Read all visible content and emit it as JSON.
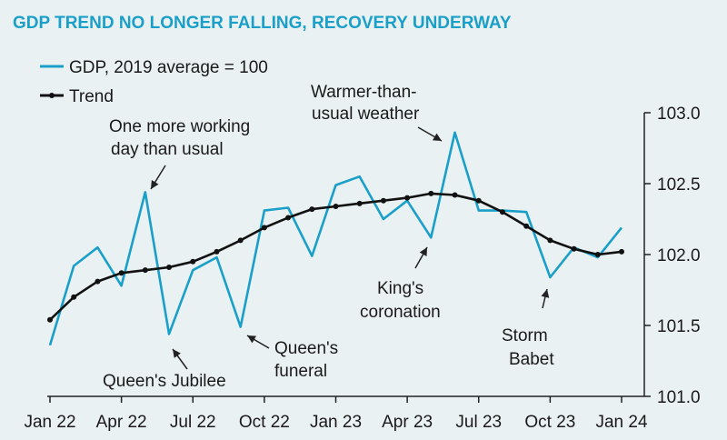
{
  "chart_data": {
    "type": "line",
    "title": "GDP TREND NO LONGER FALLING, RECOVERY UNDERWAY",
    "x": [
      "Jan 22",
      "Feb 22",
      "Mar 22",
      "Apr 22",
      "May 22",
      "Jun 22",
      "Jul 22",
      "Aug 22",
      "Sep 22",
      "Oct 22",
      "Nov 22",
      "Dec 22",
      "Jan 23",
      "Feb 23",
      "Mar 23",
      "Apr 23",
      "May 23",
      "Jun 23",
      "Jul 23",
      "Aug 23",
      "Sep 23",
      "Oct 23",
      "Nov 23",
      "Dec 23",
      "Jan 24"
    ],
    "x_tick_labels": [
      "Jan 22",
      "Apr 22",
      "Jul 22",
      "Oct 22",
      "Jan 23",
      "Apr 23",
      "Jul 23",
      "Oct 23",
      "Jan 24"
    ],
    "y_ticks": [
      "101.0",
      "101.5",
      "102.0",
      "102.5",
      "103.0"
    ],
    "ylim": [
      101.0,
      103.0
    ],
    "y_axis_side": "right",
    "legend_position": "top-left",
    "series": [
      {
        "name": "GDP, 2019 average = 100",
        "color": "#1a9fc9",
        "values": [
          101.36,
          101.92,
          102.05,
          101.78,
          102.44,
          101.44,
          101.89,
          101.98,
          101.49,
          102.31,
          102.33,
          101.99,
          102.49,
          102.55,
          102.25,
          102.38,
          102.12,
          102.86,
          102.31,
          102.31,
          102.3,
          101.84,
          102.05,
          101.98,
          102.19
        ]
      },
      {
        "name": "Trend",
        "color": "#111111",
        "values": [
          101.54,
          101.7,
          101.81,
          101.87,
          101.89,
          101.91,
          101.95,
          102.02,
          102.1,
          102.19,
          102.26,
          102.32,
          102.34,
          102.36,
          102.38,
          102.4,
          102.43,
          102.42,
          102.38,
          102.3,
          102.2,
          102.1,
          102.04,
          102.0,
          102.02
        ]
      }
    ],
    "annotations": [
      {
        "text": "One more working day than usual",
        "lines": [
          "One more working",
          "day than usual"
        ],
        "target": "May 22"
      },
      {
        "text": "Queen's Jubilee",
        "lines": [
          "Queen's Jubilee"
        ],
        "target": "Jun 22"
      },
      {
        "text": "Queen's funeral",
        "lines": [
          "Queen's",
          "funeral"
        ],
        "target": "Sep 22"
      },
      {
        "text": "King's coronation",
        "lines": [
          "King's",
          "coronation"
        ],
        "target": "May 23"
      },
      {
        "text": "Warmer-than-usual weather",
        "lines": [
          "Warmer-than-",
          "usual weather"
        ],
        "target": "Jun 23"
      },
      {
        "text": "Storm Babet",
        "lines": [
          "Storm",
          "Babet"
        ],
        "target": "Oct 23"
      }
    ]
  }
}
